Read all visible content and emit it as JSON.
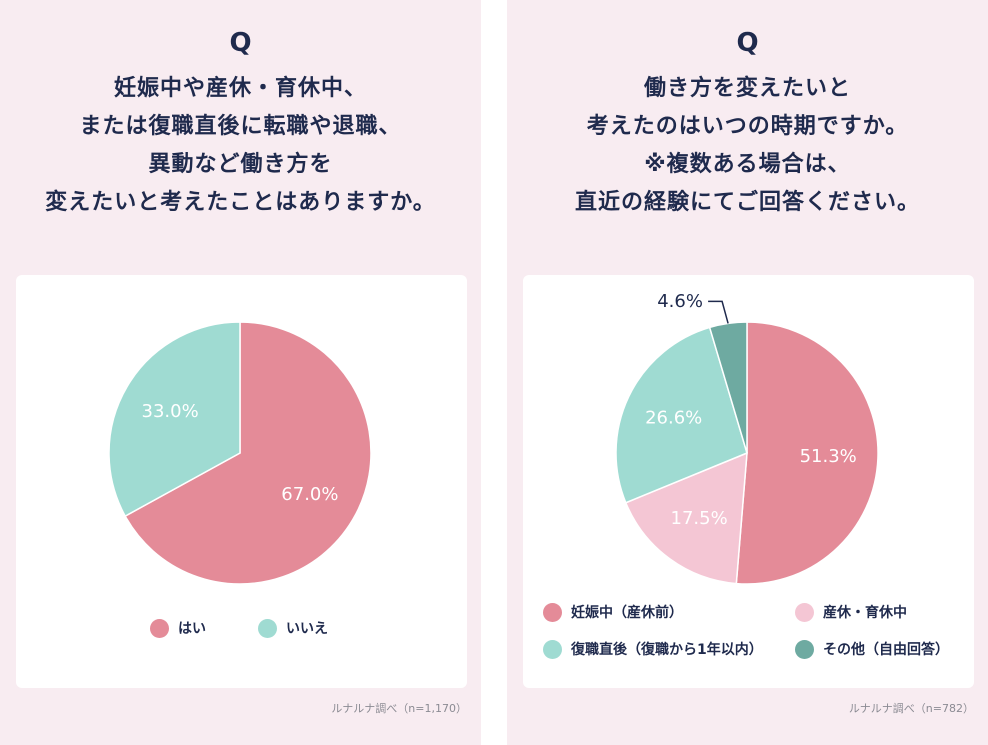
{
  "left": {
    "q_mark": "Q",
    "question_lines": [
      "妊娠中や産休・育休中、",
      "または復職直後に転職や退職、",
      "異動など働き方を",
      "変えたいと考えたことはありますか。"
    ],
    "source": "ルナルナ調べ（n=1,170）"
  },
  "right": {
    "q_mark": "Q",
    "question_lines": [
      "働き方を変えたいと",
      "考えたのはいつの時期ですか。",
      "※複数ある場合は、",
      "直近の経験にてご回答ください。"
    ],
    "source": "ルナルナ調べ（n=782）"
  },
  "chart_data": [
    {
      "type": "pie",
      "title": "",
      "categories": [
        "はい",
        "いいえ"
      ],
      "values": [
        67.0,
        33.0
      ],
      "labels": [
        "67.0%",
        "33.0%"
      ],
      "colors": [
        "#e48b98",
        "#9fdbd2"
      ],
      "legend": "bottom"
    },
    {
      "type": "pie",
      "title": "",
      "categories": [
        "妊娠中（産休前）",
        "産休・育休中",
        "復職直後（復職から1年以内）",
        "その他（自由回答）"
      ],
      "values": [
        51.3,
        17.5,
        26.6,
        4.6
      ],
      "labels": [
        "51.3%",
        "17.5%",
        "26.6%",
        "4.6%"
      ],
      "colors": [
        "#e48b98",
        "#f4c6d4",
        "#9fdbd2",
        "#6eaaa1"
      ],
      "legend": "bottom"
    }
  ]
}
